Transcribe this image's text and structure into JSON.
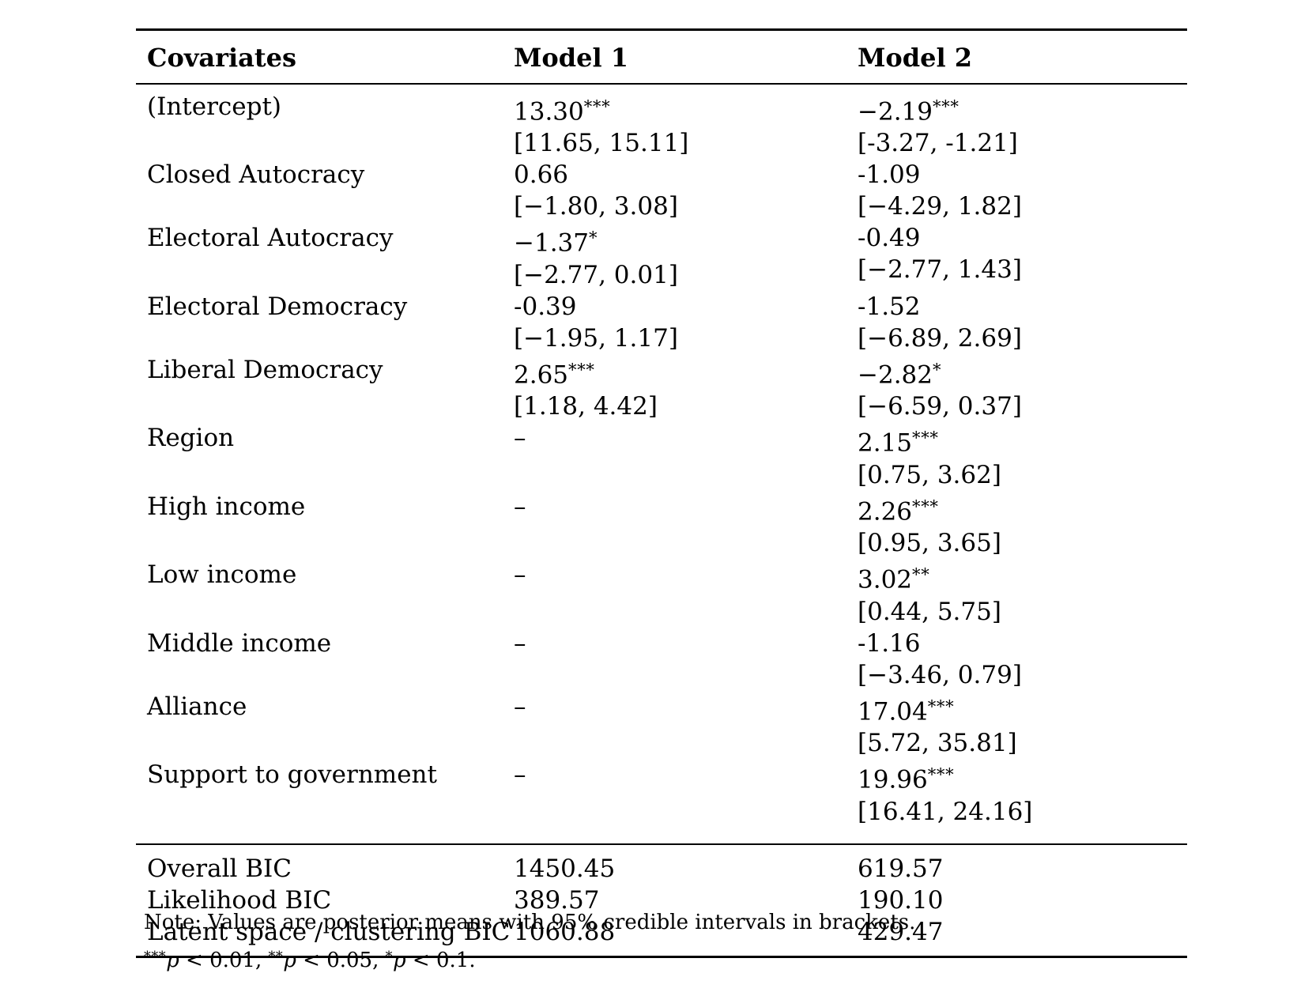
{
  "table": {
    "columns": [
      "Covariates",
      "Model 1",
      "Model 2"
    ],
    "rows": [
      {
        "label": "(Intercept)",
        "m1": {
          "est": "13.30",
          "stars": "***",
          "ci": "[11.65, 15.11]"
        },
        "m2": {
          "est": "−2.19",
          "stars": "***",
          "ci": "[-3.27, -1.21]"
        }
      },
      {
        "label": "Closed Autocracy",
        "m1": {
          "est": "0.66",
          "stars": "",
          "ci": "[−1.80, 3.08]"
        },
        "m2": {
          "est": "-1.09",
          "stars": "",
          "ci": "[−4.29, 1.82]"
        }
      },
      {
        "label": "Electoral Autocracy",
        "m1": {
          "est": "−1.37",
          "stars": "*",
          "ci": "[−2.77, 0.01]"
        },
        "m2": {
          "est": "-0.49",
          "stars": "",
          "ci": "[−2.77, 1.43]"
        }
      },
      {
        "label": "Electoral Democracy",
        "m1": {
          "est": "-0.39",
          "stars": "",
          "ci": "[−1.95, 1.17]"
        },
        "m2": {
          "est": "-1.52",
          "stars": "",
          "ci": "[−6.89, 2.69]"
        }
      },
      {
        "label": "Liberal Democracy",
        "m1": {
          "est": "2.65",
          "stars": "***",
          "ci": "[1.18, 4.42]"
        },
        "m2": {
          "est": "−2.82",
          "stars": "*",
          "ci": "[−6.59, 0.37]"
        }
      },
      {
        "label": "Region",
        "m1": {
          "dash": "–"
        },
        "m2": {
          "est": "2.15",
          "stars": "***",
          "ci": "[0.75, 3.62]"
        }
      },
      {
        "label": "High income",
        "m1": {
          "dash": "–"
        },
        "m2": {
          "est": "2.26",
          "stars": "***",
          "ci": "[0.95, 3.65]"
        }
      },
      {
        "label": "Low income",
        "m1": {
          "dash": "–"
        },
        "m2": {
          "est": "3.02",
          "stars": "**",
          "ci": "[0.44, 5.75]"
        }
      },
      {
        "label": "Middle income",
        "m1": {
          "dash": "–"
        },
        "m2": {
          "est": "-1.16",
          "stars": "",
          "ci": "[−3.46, 0.79]"
        }
      },
      {
        "label": "Alliance",
        "m1": {
          "dash": "–"
        },
        "m2": {
          "est": "17.04",
          "stars": "***",
          "ci": "[5.72, 35.81]"
        }
      },
      {
        "label": "Support to government",
        "m1": {
          "dash": "–"
        },
        "m2": {
          "est": "19.96",
          "stars": "***",
          "ci": "[16.41, 24.16]"
        }
      }
    ],
    "fit_rows": [
      {
        "label": "Overall BIC",
        "m1": "1450.45",
        "m2": "619.57"
      },
      {
        "label": "Likelihood BIC",
        "m1": "389.57",
        "m2": "190.10"
      },
      {
        "label": "Latent space / clustering BIC",
        "m1": "1060.88",
        "m2": "429.47"
      }
    ]
  },
  "notes": {
    "note": "Note: Values are posterior means with 95% credible intervals in brackets.",
    "significance": [
      {
        "stars": "***",
        "var": "p",
        "text": " < 0.01, "
      },
      {
        "stars": "**",
        "var": "p",
        "text": " < 0.05, "
      },
      {
        "stars": "*",
        "var": "p",
        "text": " < 0.1."
      }
    ]
  }
}
